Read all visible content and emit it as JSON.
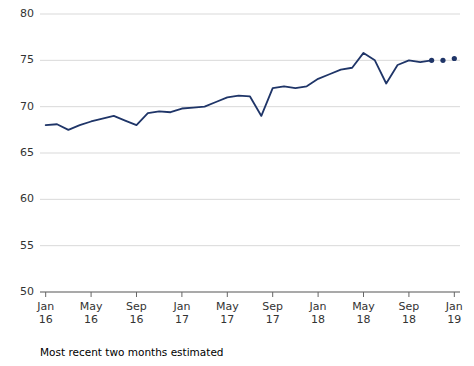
{
  "chart_data": {
    "type": "line",
    "footnote": "Most recent two months estimated",
    "categories": [
      "Jan\n16",
      null,
      null,
      null,
      "May\n16",
      null,
      null,
      null,
      "Sep\n16",
      null,
      null,
      null,
      "Jan\n17",
      null,
      null,
      null,
      "May\n17",
      null,
      null,
      null,
      "Sep\n17",
      null,
      null,
      null,
      "Jan\n18",
      null,
      null,
      null,
      "May\n18",
      null,
      null,
      null,
      "Sep\n18",
      null,
      null,
      null,
      "Jan\n19"
    ],
    "series": [
      {
        "color": "#1f3568",
        "line_style": "solid",
        "values": [
          68.0,
          68.1,
          67.5,
          68.0,
          68.4,
          68.7,
          69.0,
          68.5,
          68.0,
          69.3,
          69.5,
          69.4,
          69.8,
          69.9,
          70.0,
          70.5,
          71.0,
          71.2,
          71.1,
          69.0,
          72.0,
          72.2,
          72.0,
          72.2,
          73.0,
          73.5,
          74.0,
          74.2,
          75.8,
          75.0,
          72.5,
          74.5,
          75.0,
          74.8,
          75.0,
          null,
          null
        ]
      },
      {
        "color": "#1f3568",
        "line_style": "none",
        "marker": "circle",
        "values": [
          null,
          null,
          null,
          null,
          null,
          null,
          null,
          null,
          null,
          null,
          null,
          null,
          null,
          null,
          null,
          null,
          null,
          null,
          null,
          null,
          null,
          null,
          null,
          null,
          null,
          null,
          null,
          null,
          null,
          null,
          null,
          null,
          null,
          null,
          75.0,
          75.0,
          75.2
        ]
      }
    ],
    "ylim": [
      50,
      80
    ],
    "yticks": [
      50,
      55,
      60,
      65,
      70,
      75,
      80
    ],
    "grid": true
  }
}
